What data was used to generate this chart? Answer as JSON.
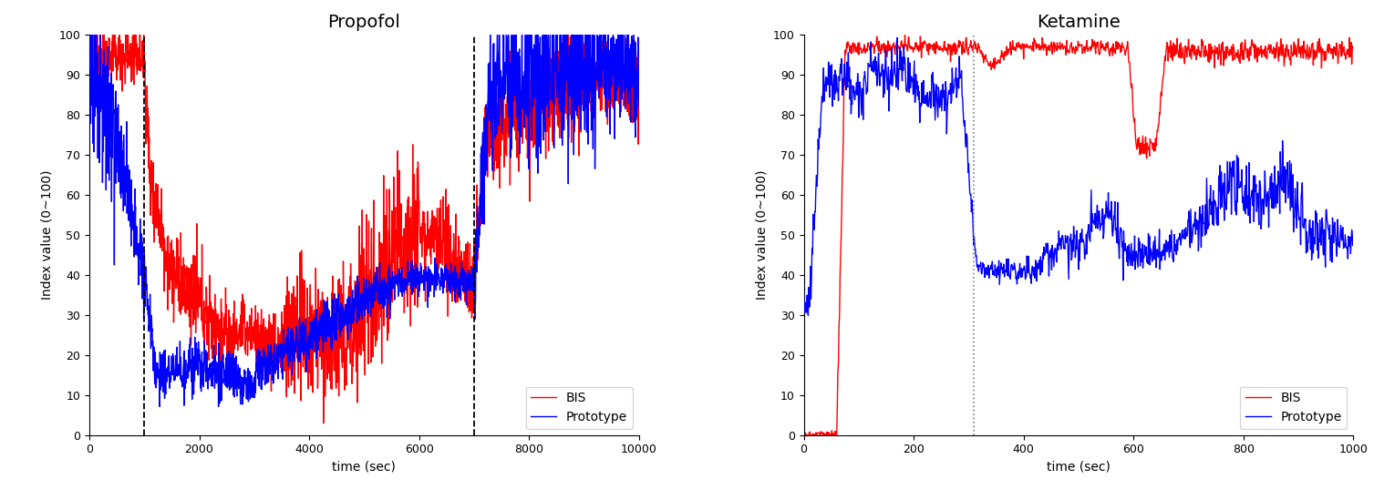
{
  "propofol": {
    "title": "Propofol",
    "xlabel": "time (sec)",
    "ylabel": "Index value (0~100)",
    "xlim": [
      0,
      10000
    ],
    "ylim": [
      0,
      100
    ],
    "xticks": [
      0,
      2000,
      4000,
      6000,
      8000,
      10000
    ],
    "yticks": [
      0,
      10,
      20,
      30,
      40,
      50,
      60,
      70,
      80,
      90,
      100
    ],
    "vline1": 1000,
    "vline2": 7000,
    "legend_loc": "lower right"
  },
  "ketamine": {
    "title": "Ketamine",
    "xlabel": "time (sec)",
    "ylabel": "Index value (0~100)",
    "xlim": [
      0,
      1000
    ],
    "ylim": [
      0,
      100
    ],
    "xticks": [
      0,
      200,
      400,
      600,
      800,
      1000
    ],
    "yticks": [
      0,
      10,
      20,
      30,
      40,
      50,
      60,
      70,
      80,
      90,
      100
    ],
    "vline1": 310,
    "legend_loc": "lower right"
  },
  "bis_color": "#FF0000",
  "prototype_color": "#0000FF",
  "background_color": "#FFFFFF",
  "line_width": 1.0,
  "title_fontsize": 14,
  "label_fontsize": 10,
  "tick_fontsize": 9
}
